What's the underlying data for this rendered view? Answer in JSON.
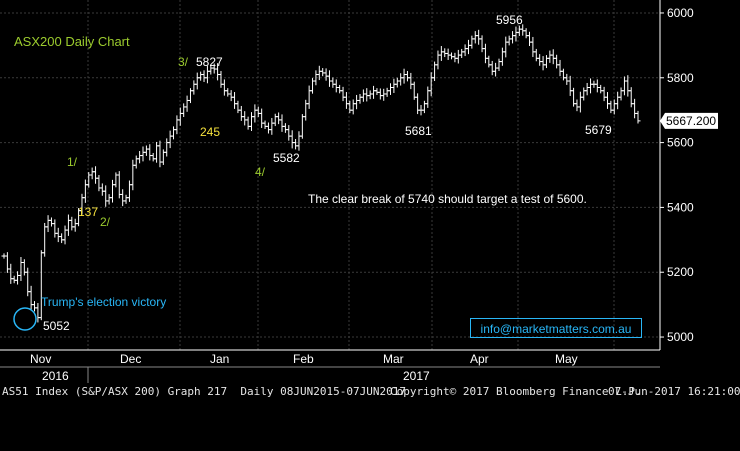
{
  "chart_data": {
    "type": "ohlc",
    "title": "ASX200 Daily Chart",
    "last_price_label": "5667.200",
    "y_ticks": [
      5000,
      5200,
      5400,
      5600,
      5800,
      6000
    ],
    "ylim": [
      4960,
      6040
    ],
    "months": [
      "Nov",
      "Dec",
      "Jan",
      "Feb",
      "Mar",
      "Apr",
      "May"
    ],
    "years": [
      {
        "label": "2016"
      },
      {
        "label": "2017"
      }
    ],
    "grid": true,
    "series": [
      {
        "name": "AS51 Index",
        "closes": [
          5250,
          5210,
          5180,
          5175,
          5190,
          5230,
          5200,
          5140,
          5100,
          5090,
          5060,
          5260,
          5340,
          5360,
          5350,
          5320,
          5310,
          5300,
          5330,
          5360,
          5340,
          5350,
          5390,
          5430,
          5470,
          5500,
          5510,
          5490,
          5460,
          5450,
          5420,
          5430,
          5470,
          5500,
          5440,
          5420,
          5430,
          5470,
          5530,
          5550,
          5560,
          5570,
          5580,
          5560,
          5550,
          5590,
          5540,
          5570,
          5600,
          5620,
          5640,
          5670,
          5690,
          5710,
          5730,
          5760,
          5780,
          5800,
          5810,
          5800,
          5820,
          5830,
          5827,
          5810,
          5780,
          5760,
          5750,
          5740,
          5720,
          5700,
          5680,
          5670,
          5650,
          5680,
          5700,
          5690,
          5660,
          5650,
          5640,
          5660,
          5680,
          5670,
          5650,
          5640,
          5620,
          5600,
          5590,
          5620,
          5680,
          5720,
          5760,
          5790,
          5810,
          5820,
          5815,
          5805,
          5790,
          5780,
          5770,
          5760,
          5740,
          5720,
          5700,
          5720,
          5730,
          5740,
          5750,
          5745,
          5750,
          5760,
          5755,
          5745,
          5750,
          5760,
          5770,
          5780,
          5790,
          5800,
          5810,
          5800,
          5780,
          5740,
          5700,
          5700,
          5720,
          5760,
          5800,
          5840,
          5870,
          5880,
          5875,
          5870,
          5865,
          5860,
          5870,
          5880,
          5890,
          5900,
          5920,
          5930,
          5920,
          5890,
          5860,
          5840,
          5820,
          5830,
          5850,
          5880,
          5910,
          5920,
          5930,
          5940,
          5950,
          5945,
          5930,
          5910,
          5880,
          5860,
          5850,
          5840,
          5860,
          5870,
          5860,
          5840,
          5820,
          5800,
          5790,
          5760,
          5720,
          5710,
          5740,
          5760,
          5770,
          5780,
          5780,
          5770,
          5760,
          5740,
          5720,
          5700,
          5720,
          5740,
          5760,
          5790,
          5760,
          5720,
          5690,
          5667
        ]
      }
    ],
    "annotations": [
      {
        "text": "5827",
        "color": "#ffffff"
      },
      {
        "text": "3/",
        "color": "#9ccc2e"
      },
      {
        "text": "245",
        "color": "#f5e13c"
      },
      {
        "text": "5956",
        "color": "#ffffff"
      },
      {
        "text": "5681",
        "color": "#ffffff"
      },
      {
        "text": "5679",
        "color": "#ffffff"
      },
      {
        "text": "5582",
        "color": "#ffffff"
      },
      {
        "text": "4/",
        "color": "#9ccc2e"
      },
      {
        "text": "1/",
        "color": "#9ccc2e"
      },
      {
        "text": "137",
        "color": "#f5e13c"
      },
      {
        "text": "2/",
        "color": "#9ccc2e"
      },
      {
        "text": "Trump's election victory",
        "color": "#29b6f6"
      },
      {
        "text": "5052",
        "color": "#ffffff"
      },
      {
        "text": "The clear break of 5740 should target a test of 5600.",
        "color": "#ffffff"
      }
    ]
  },
  "contact_email": "info@marketmatters.com.au",
  "footer": {
    "left": "AS51 Index (S&P/ASX 200) Graph 217  Daily 08JUN2015-07JUN2017",
    "center": "Copyright© 2017 Bloomberg Finance L.P.",
    "right": "07-Jun-2017 16:21:00"
  },
  "colors": {
    "background": "#000000",
    "bars": "#ffffff",
    "grid": "#3a3a3a",
    "title": "#9ccc2e",
    "wave_label": "#9ccc2e",
    "count_label": "#f5e13c",
    "highlight": "#29b6f6"
  }
}
